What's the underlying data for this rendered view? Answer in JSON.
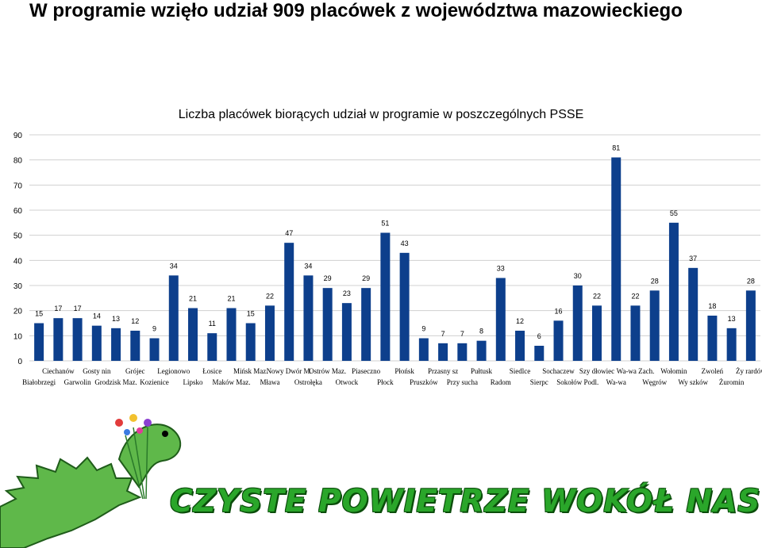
{
  "page": {
    "title": "W programie wzięło udział 909 placówek z województwa mazowieckiego"
  },
  "banner": {
    "slogan": "CZYSTE POWIETRZE WOKÓŁ NAS",
    "slogan_color": "#2aa62a"
  },
  "chart_data": {
    "type": "bar",
    "title": "Liczba placówek biorących udział w programie w poszczególnych PSSE",
    "xlabel": "",
    "ylabel": "",
    "ylim": [
      0,
      90
    ],
    "yticks": [
      0,
      10,
      20,
      30,
      40,
      50,
      60,
      70,
      80,
      90
    ],
    "grid": true,
    "bar_color": "#0d3f8c",
    "categories": [
      "Białobrzegi",
      "Ciechanów",
      "Garwolin",
      "Gostynin",
      "Grodzisk Maz.",
      "Grójec",
      "Kozienice",
      "Legionowo",
      "Lipsko",
      "Łosice",
      "Maków Maz.",
      "Mińsk Maz.",
      "Mława",
      "Nowy Dwór M.",
      "Ostrołęka",
      "Ostrów Maz.",
      "Otwock",
      "Piaseczno",
      "Płock",
      "Płońsk",
      "Pruszków",
      "Przasnysz",
      "Przysucha",
      "Pułtusk",
      "Radom",
      "Siedlce",
      "Sierpc",
      "Sochaczew",
      "Sokołów Podl.",
      "Szydłowiec",
      "Wa-wa",
      "Wa-wa Zach.",
      "Węgrów",
      "Wołomin",
      "Wyszków",
      "Zwoleń",
      "Żuromin",
      "Żyrardów"
    ],
    "category_labels": [
      "Białobrzegi",
      "Ciechanów",
      "Garwolin",
      "Gosty nin",
      "Grodzisk Maz.",
      "Grójec",
      "Kozienice",
      "Legionowo",
      "Lipsko",
      "Łosice",
      "Maków Maz.",
      "Mińsk Maz.",
      "Mława",
      "Nowy Dwór M.",
      "Ostrołęka",
      "Ostrów Maz.",
      "Otwock",
      "Piaseczno",
      "Płock",
      "Płońsk",
      "Pruszków",
      "Przasny sz",
      "Przy sucha",
      "Pułtusk",
      "Radom",
      "Siedlce",
      "Sierpc",
      "Sochaczew",
      "Sokołów Podl.",
      "Szy dłowiec",
      "Wa-wa",
      "Wa-wa Zach.",
      "Węgrów",
      "Wołomin",
      "Wy szków",
      "Zwoleń",
      "Żuromin",
      "Ży rardów"
    ],
    "values": [
      15,
      17,
      17,
      14,
      13,
      12,
      9,
      34,
      21,
      11,
      21,
      15,
      22,
      47,
      34,
      29,
      23,
      29,
      51,
      43,
      9,
      7,
      7,
      8,
      33,
      12,
      6,
      16,
      30,
      22,
      81,
      22,
      28,
      55,
      37,
      18,
      13,
      28
    ]
  }
}
